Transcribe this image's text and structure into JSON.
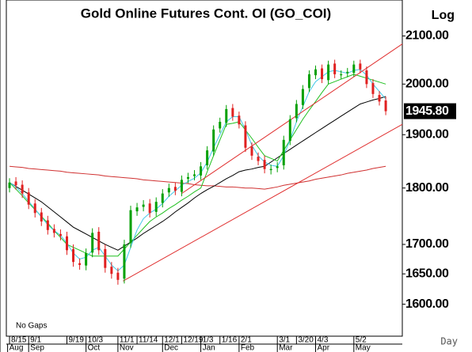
{
  "chart_data": {
    "type": "candlestick",
    "title": "Gold Online Futures Cont. OI (GO_COI)",
    "scale_label": "Log",
    "period_label": "Day",
    "gaps_label": "No Gaps",
    "log_scale": true,
    "ylim": [
      1549,
      2164
    ],
    "xlim": [
      -0.5,
      61.6
    ],
    "yticks": [
      {
        "value": 2100,
        "label": "2100.00"
      },
      {
        "value": 2000,
        "label": "2000.00"
      },
      {
        "value": 1900,
        "label": "1900.00"
      },
      {
        "value": 1800,
        "label": "1800.00"
      },
      {
        "value": 1700,
        "label": "1700.00"
      },
      {
        "value": 1650,
        "label": "1650.00"
      },
      {
        "value": 1600,
        "label": "1600.00"
      }
    ],
    "xticks": [
      {
        "value": 0,
        "label": "8/15"
      },
      {
        "value": 3,
        "label": "9/1"
      },
      {
        "value": 9,
        "label": "9/19"
      },
      {
        "value": 12,
        "label": "10/3"
      },
      {
        "value": 17,
        "label": "11/1"
      },
      {
        "value": 20,
        "label": "11/14"
      },
      {
        "value": 24,
        "label": "12/1"
      },
      {
        "value": 27,
        "label": "12/19"
      },
      {
        "value": 30,
        "label": "1/3"
      },
      {
        "value": 33,
        "label": "1/16"
      },
      {
        "value": 36,
        "label": "2/1"
      },
      {
        "value": 42,
        "label": "3/1"
      },
      {
        "value": 45,
        "label": "3/20"
      },
      {
        "value": 48,
        "label": "4/3"
      },
      {
        "value": 54,
        "label": "5/2"
      }
    ],
    "month_ticks": [
      {
        "value": -0.3,
        "label": "Aug"
      },
      {
        "value": 3,
        "label": "Sep"
      },
      {
        "value": 12,
        "label": "Oct"
      },
      {
        "value": 17,
        "label": "Nov"
      },
      {
        "value": 24,
        "label": "Dec"
      },
      {
        "value": 30,
        "label": "Jan"
      },
      {
        "value": 36,
        "label": "Feb"
      },
      {
        "value": 42,
        "label": "Mar"
      },
      {
        "value": 48,
        "label": "Apr"
      },
      {
        "value": 54,
        "label": "May"
      }
    ],
    "up_color": "#00a000",
    "down_color": "#e02020",
    "open": [
      1800,
      1812,
      1806,
      1792,
      1772,
      1756,
      1742,
      1727,
      1718,
      1714,
      1692,
      1668,
      1664,
      1686,
      1722,
      1692,
      1662,
      1652,
      1642,
      1702,
      1758,
      1766,
      1772,
      1757,
      1773,
      1792,
      1802,
      1793,
      1817,
      1822,
      1823,
      1842,
      1868,
      1912,
      1923,
      1952,
      1937,
      1918,
      1877,
      1858,
      1852,
      1833,
      1837,
      1842,
      1888,
      1932,
      1958,
      1992,
      2018,
      2032,
      2008,
      2042,
      2018,
      2022,
      2023,
      2042,
      2028,
      2002,
      1978,
      1967
    ],
    "high": [
      1818,
      1820,
      1814,
      1800,
      1780,
      1764,
      1750,
      1735,
      1726,
      1722,
      1700,
      1676,
      1693,
      1728,
      1730,
      1700,
      1670,
      1660,
      1708,
      1768,
      1773,
      1778,
      1780,
      1783,
      1798,
      1808,
      1810,
      1823,
      1828,
      1833,
      1848,
      1878,
      1918,
      1933,
      1958,
      1960,
      1945,
      1926,
      1885,
      1866,
      1860,
      1843,
      1848,
      1898,
      1938,
      1968,
      1998,
      2028,
      2038,
      2040,
      2048,
      2050,
      2028,
      2033,
      2048,
      2050,
      2036,
      2010,
      1986,
      1975
    ],
    "low": [
      1792,
      1797,
      1782,
      1762,
      1747,
      1732,
      1717,
      1712,
      1707,
      1682,
      1662,
      1657,
      1656,
      1678,
      1682,
      1652,
      1642,
      1632,
      1634,
      1694,
      1750,
      1758,
      1747,
      1749,
      1765,
      1784,
      1787,
      1785,
      1809,
      1814,
      1815,
      1834,
      1860,
      1904,
      1915,
      1927,
      1912,
      1867,
      1852,
      1842,
      1827,
      1825,
      1829,
      1834,
      1880,
      1924,
      1950,
      1984,
      2010,
      2002,
      2000,
      2012,
      2010,
      2014,
      2015,
      2022,
      1992,
      1972,
      1957,
      1938
    ],
    "close": [
      1810,
      1805,
      1790,
      1770,
      1755,
      1740,
      1725,
      1720,
      1715,
      1690,
      1670,
      1665,
      1685,
      1720,
      1690,
      1660,
      1650,
      1640,
      1700,
      1760,
      1765,
      1770,
      1755,
      1775,
      1790,
      1800,
      1795,
      1815,
      1820,
      1825,
      1840,
      1870,
      1910,
      1925,
      1950,
      1935,
      1920,
      1875,
      1860,
      1850,
      1835,
      1835,
      1840,
      1890,
      1930,
      1960,
      1990,
      2020,
      2030,
      2010,
      2040,
      2020,
      2020,
      2025,
      2040,
      2030,
      2000,
      1980,
      1965,
      1945.8
    ],
    "last_label": "1945.80",
    "lines": [
      {
        "color": "#d03030",
        "values": [
          1840,
          1839,
          1838,
          1836,
          1835,
          1834,
          1833,
          1832,
          1831,
          1829,
          1828,
          1827,
          1826,
          1825,
          1824,
          1822,
          1821,
          1820,
          1819,
          1818,
          1817,
          1815,
          1814,
          1813,
          1812,
          1811,
          1810,
          1809,
          1808,
          1806,
          1805,
          1804,
          1804,
          1803,
          1802,
          1802,
          1801,
          1800,
          1800,
          1799,
          1798,
          1800,
          1802,
          1805,
          1807,
          1809,
          1811,
          1813,
          1816,
          1818,
          1820,
          1822,
          1824,
          1827,
          1829,
          1831,
          1833,
          1836,
          1838,
          1840
        ]
      },
      {
        "color": "#000000",
        "values": [
          1810,
          1803,
          1796,
          1789,
          1782,
          1775,
          1766,
          1757,
          1748,
          1739,
          1730,
          1724,
          1718,
          1712,
          1706,
          1700,
          1695,
          1690,
          1697,
          1704,
          1711,
          1719,
          1726,
          1733,
          1740,
          1748,
          1757,
          1765,
          1773,
          1782,
          1790,
          1797,
          1803,
          1810,
          1817,
          1823,
          1830,
          1833,
          1835,
          1838,
          1840,
          1848,
          1856,
          1864,
          1872,
          1880,
          1888,
          1896,
          1904,
          1912,
          1920,
          1928,
          1936,
          1944,
          1952,
          1960,
          1964,
          1968,
          1971,
          1975
        ]
      },
      {
        "color": "#20c020",
        "values": [
          1810,
          1798,
          1786,
          1773,
          1761,
          1749,
          1737,
          1724,
          1712,
          1700,
          1695,
          1690,
          1685,
          1680,
          1680,
          1680,
          1680,
          1680,
          1692,
          1704,
          1716,
          1728,
          1740,
          1748,
          1755,
          1763,
          1770,
          1778,
          1785,
          1793,
          1800,
          1830,
          1860,
          1890,
          1920,
          1922,
          1925,
          1909,
          1893,
          1876,
          1860,
          1855,
          1850,
          1870,
          1890,
          1910,
          1930,
          1948,
          1965,
          1983,
          2000,
          2005,
          2010,
          2015,
          2020,
          2016,
          2012,
          2008,
          2004,
          2000
        ]
      },
      {
        "color": "#40c8e8",
        "values": [
          1810,
          1802,
          1790,
          1776,
          1762,
          1748,
          1734,
          1724,
          1716,
          1702,
          1685,
          1675,
          1678,
          1690,
          1695,
          1680,
          1665,
          1655,
          1665,
          1695,
          1725,
          1745,
          1755,
          1762,
          1772,
          1785,
          1795,
          1805,
          1812,
          1818,
          1828,
          1848,
          1875,
          1900,
          1925,
          1935,
          1935,
          1910,
          1880,
          1860,
          1848,
          1842,
          1840,
          1860,
          1890,
          1925,
          1955,
          1985,
          2005,
          2015,
          2025,
          2028,
          2025,
          2022,
          2028,
          2030,
          2018,
          2000,
          1985,
          1970
        ]
      }
    ],
    "trendlines": [
      {
        "color": "#e03030",
        "x": [
          17.8,
          61.6
        ],
        "y": [
          1638,
          1920
        ]
      },
      {
        "color": "#e03030",
        "x": [
          27,
          61.6
        ],
        "y": [
          1790,
          2083
        ]
      }
    ]
  }
}
